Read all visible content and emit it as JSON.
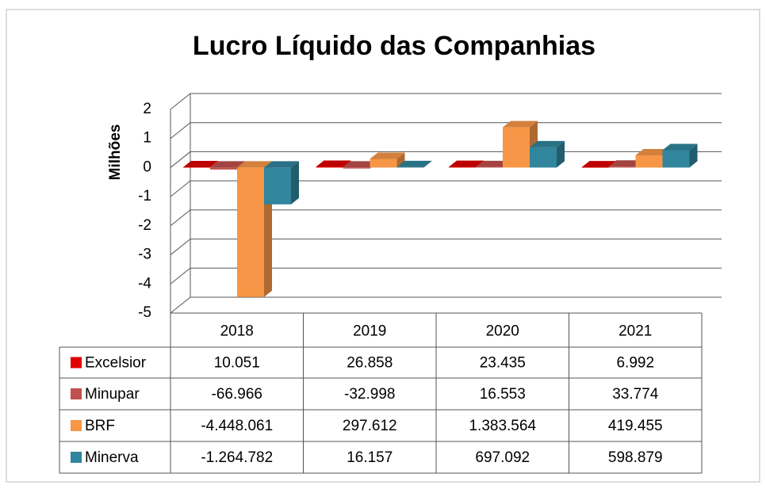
{
  "chart_data": {
    "type": "bar",
    "title": "Lucro Líquido das Companhias",
    "ylabel": "Milhões",
    "categories": [
      "2018",
      "2019",
      "2020",
      "2021"
    ],
    "series": [
      {
        "name": "Excelsior",
        "color": "#e00000",
        "values": [
          0.010051,
          0.026858,
          0.023435,
          0.006992
        ],
        "value_labels": [
          "10.051",
          "26.858",
          "23.435",
          "6.992"
        ]
      },
      {
        "name": "Minupar",
        "color": "#c0504d",
        "values": [
          -0.066966,
          -0.032998,
          0.016553,
          0.033774
        ],
        "value_labels": [
          "-66.966",
          "-32.998",
          "16.553",
          "33.774"
        ]
      },
      {
        "name": "BRF",
        "color": "#f79646",
        "values": [
          -4.448061,
          0.297612,
          1.383564,
          0.419455
        ],
        "value_labels": [
          "-4.448.061",
          "297.612",
          "1.383.564",
          "419.455"
        ]
      },
      {
        "name": "Minerva",
        "color": "#31859c",
        "values": [
          -1.264782,
          0.016157,
          0.697092,
          0.598879
        ],
        "value_labels": [
          "-1.264.782",
          "16.157",
          "697.092",
          "598.879"
        ]
      }
    ],
    "ylim": [
      -5,
      2
    ],
    "yticks": [
      -5,
      -4,
      -3,
      -2,
      -1,
      0,
      1,
      2
    ],
    "grid": true
  }
}
